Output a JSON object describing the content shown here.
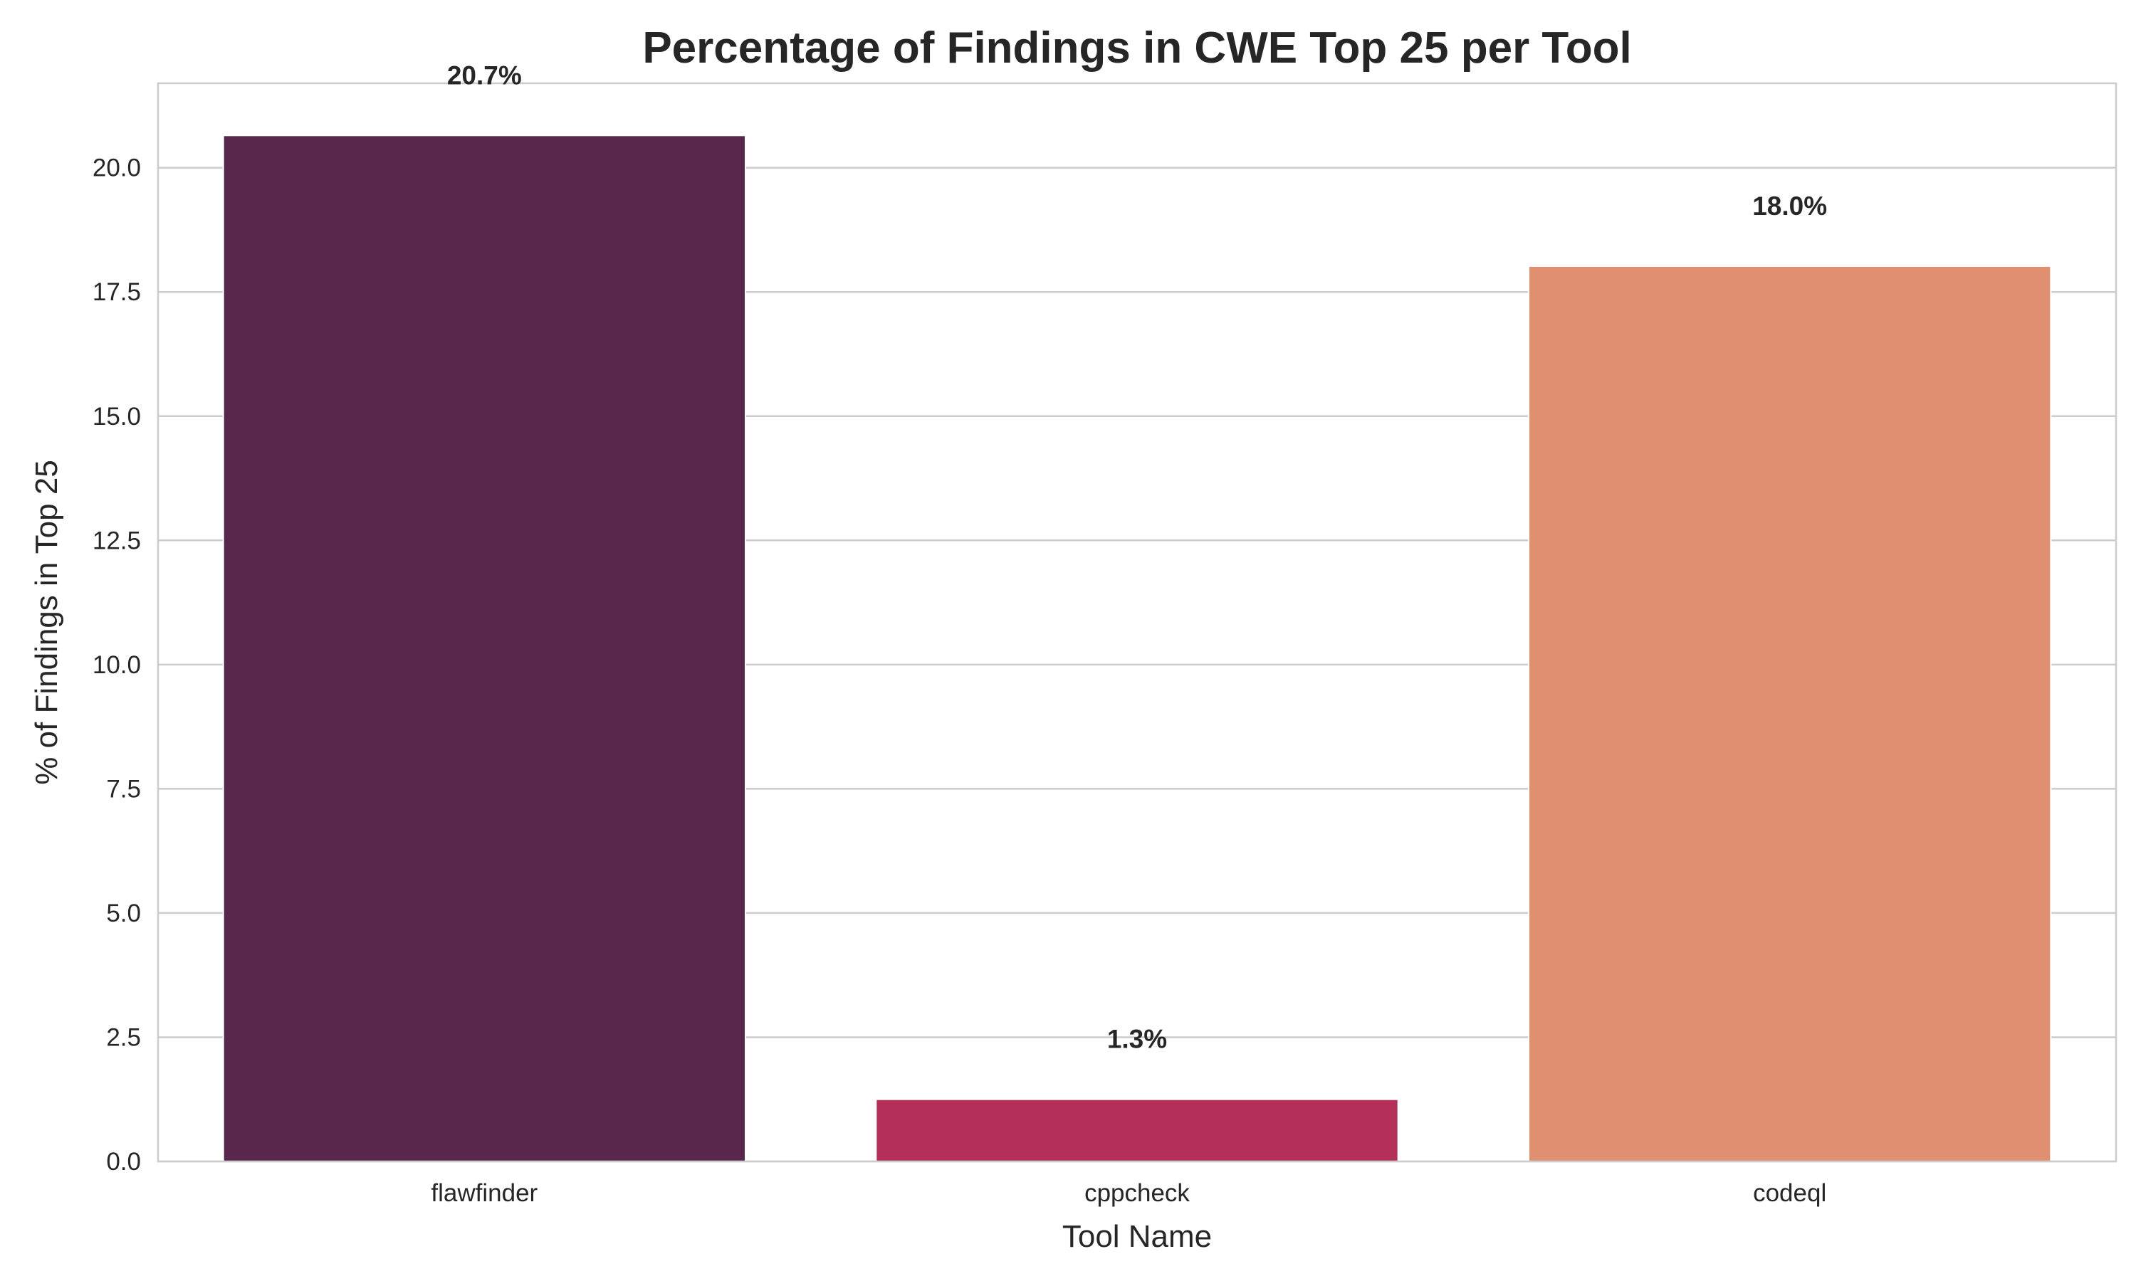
{
  "chart_data": {
    "type": "bar",
    "title": "Percentage of Findings in CWE Top 25 per Tool",
    "xlabel": "Tool Name",
    "ylabel": "% of Findings in Top 25",
    "categories": [
      "flawfinder",
      "cppcheck",
      "codeql"
    ],
    "values": [
      20.65,
      1.25,
      18.02
    ],
    "data_labels": [
      "20.7%",
      "1.3%",
      "18.0%"
    ],
    "colors": [
      "#5a274c",
      "#b53058",
      "#e08f70"
    ],
    "ylim": [
      0,
      21.7
    ],
    "yticks": [
      0,
      2.5,
      5,
      7.5,
      10,
      12.5,
      15,
      17.5,
      20
    ],
    "ytick_labels": [
      "0.0",
      "2.5",
      "5.0",
      "7.5",
      "10.0",
      "12.5",
      "15.0",
      "17.5",
      "20.0"
    ],
    "grid": true,
    "grid_axis": "y"
  }
}
